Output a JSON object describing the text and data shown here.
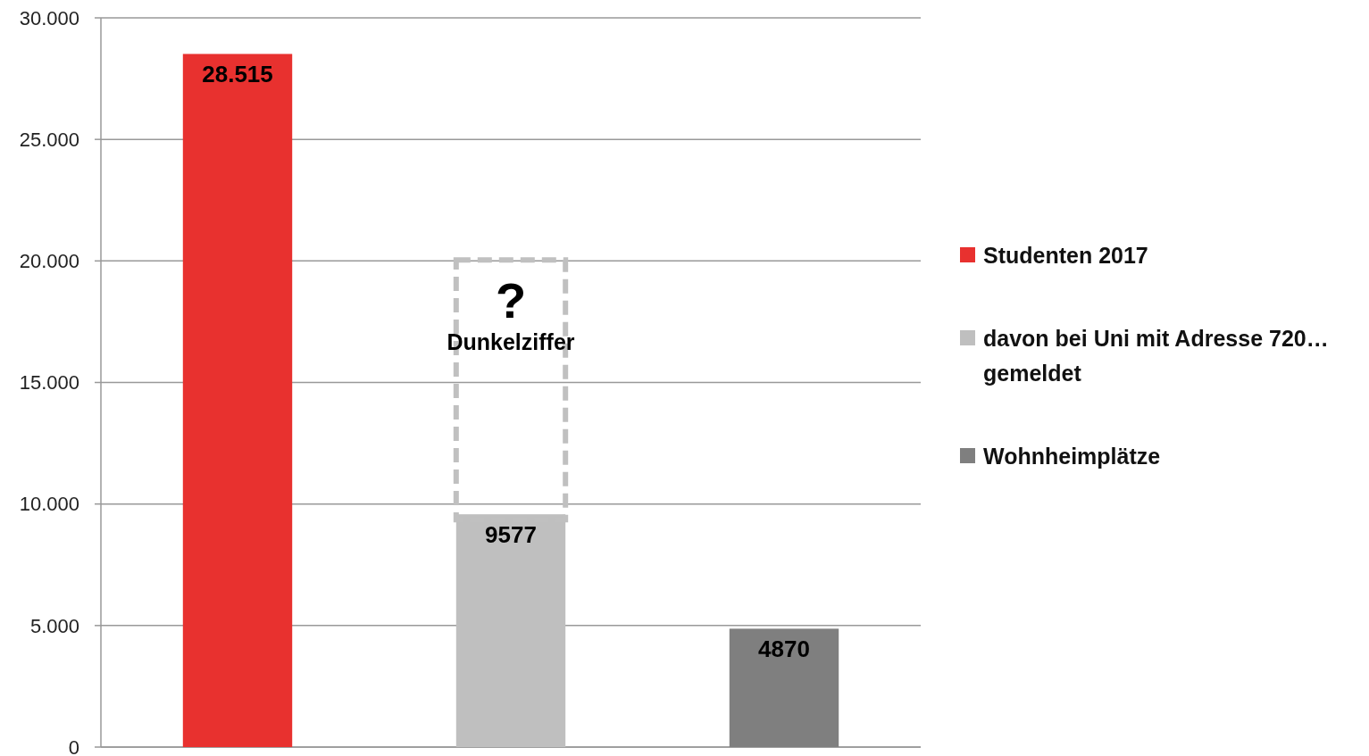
{
  "chart_data": {
    "type": "bar",
    "categories": [
      null,
      null,
      null
    ],
    "series": [
      {
        "name": "Studenten 2017",
        "color": "#e8312f",
        "values": [
          28515,
          null,
          null
        ],
        "value_labels": [
          "28.515",
          null,
          null
        ]
      },
      {
        "name": "davon bei Uni mit Adresse 720… gemeldet",
        "color": "#bfbfbf",
        "values": [
          null,
          9577,
          null
        ],
        "value_labels": [
          null,
          "9577",
          null
        ]
      },
      {
        "name": "Wohnheimplätze",
        "color": "#7f7f7f",
        "values": [
          null,
          null,
          4870
        ],
        "value_labels": [
          null,
          null,
          "4870"
        ]
      }
    ],
    "ylim": [
      0,
      30000
    ],
    "yticks": [
      0,
      {
        "value": 5000,
        "label": "5.000"
      },
      {
        "value": 10000,
        "label": "10.000"
      },
      {
        "value": 15000,
        "label": "15.000"
      },
      {
        "value": 20000,
        "label": "20.000"
      },
      {
        "value": 25000,
        "label": "25.000"
      },
      {
        "value": 30000,
        "label": "30.000"
      }
    ],
    "annotations": [
      "?",
      "Dunkelziffer"
    ],
    "grid": "y",
    "legend": "right"
  }
}
